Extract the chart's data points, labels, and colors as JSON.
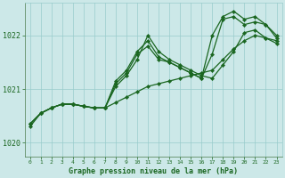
{
  "xlabel": "Graphe pression niveau de la mer (hPa)",
  "bg_color": "#cce8e8",
  "grid_color": "#99cccc",
  "line_color": "#1a6620",
  "ylim": [
    1019.75,
    1022.6
  ],
  "xlim": [
    -0.5,
    23.5
  ],
  "yticks": [
    1020,
    1021,
    1022
  ],
  "xticks": [
    0,
    1,
    2,
    3,
    4,
    5,
    6,
    7,
    8,
    9,
    10,
    11,
    12,
    13,
    14,
    15,
    16,
    17,
    18,
    19,
    20,
    21,
    22,
    23
  ],
  "series": [
    [
      1020.35,
      1020.55,
      1020.65,
      1020.72,
      1020.72,
      1020.68,
      1020.65,
      1020.65,
      1020.75,
      1020.85,
      1020.95,
      1021.05,
      1021.1,
      1021.15,
      1021.2,
      1021.25,
      1021.3,
      1021.35,
      1021.55,
      1021.75,
      1021.9,
      1022.0,
      1021.95,
      1021.85
    ],
    [
      1020.3,
      1020.55,
      1020.65,
      1020.72,
      1020.72,
      1020.68,
      1020.65,
      1020.65,
      1021.05,
      1021.25,
      1021.55,
      1022.0,
      1021.7,
      1021.55,
      1021.45,
      1021.35,
      1021.25,
      1021.2,
      1021.45,
      1021.7,
      1022.05,
      1022.1,
      1021.95,
      1021.9
    ],
    [
      1020.35,
      1020.55,
      1020.65,
      1020.72,
      1020.72,
      1020.68,
      1020.65,
      1020.65,
      1021.1,
      1021.3,
      1021.65,
      1021.8,
      1021.55,
      1021.5,
      1021.4,
      1021.3,
      1021.2,
      1021.65,
      1022.3,
      1022.35,
      1022.2,
      1022.25,
      1022.2,
      1021.95
    ],
    [
      1020.35,
      1020.55,
      1020.65,
      1020.72,
      1020.72,
      1020.68,
      1020.65,
      1020.65,
      1021.15,
      1021.35,
      1021.7,
      1021.9,
      1021.6,
      1021.5,
      1021.4,
      1021.3,
      1021.2,
      1022.0,
      1022.35,
      1022.45,
      1022.3,
      1022.35,
      1022.2,
      1022.0
    ]
  ]
}
